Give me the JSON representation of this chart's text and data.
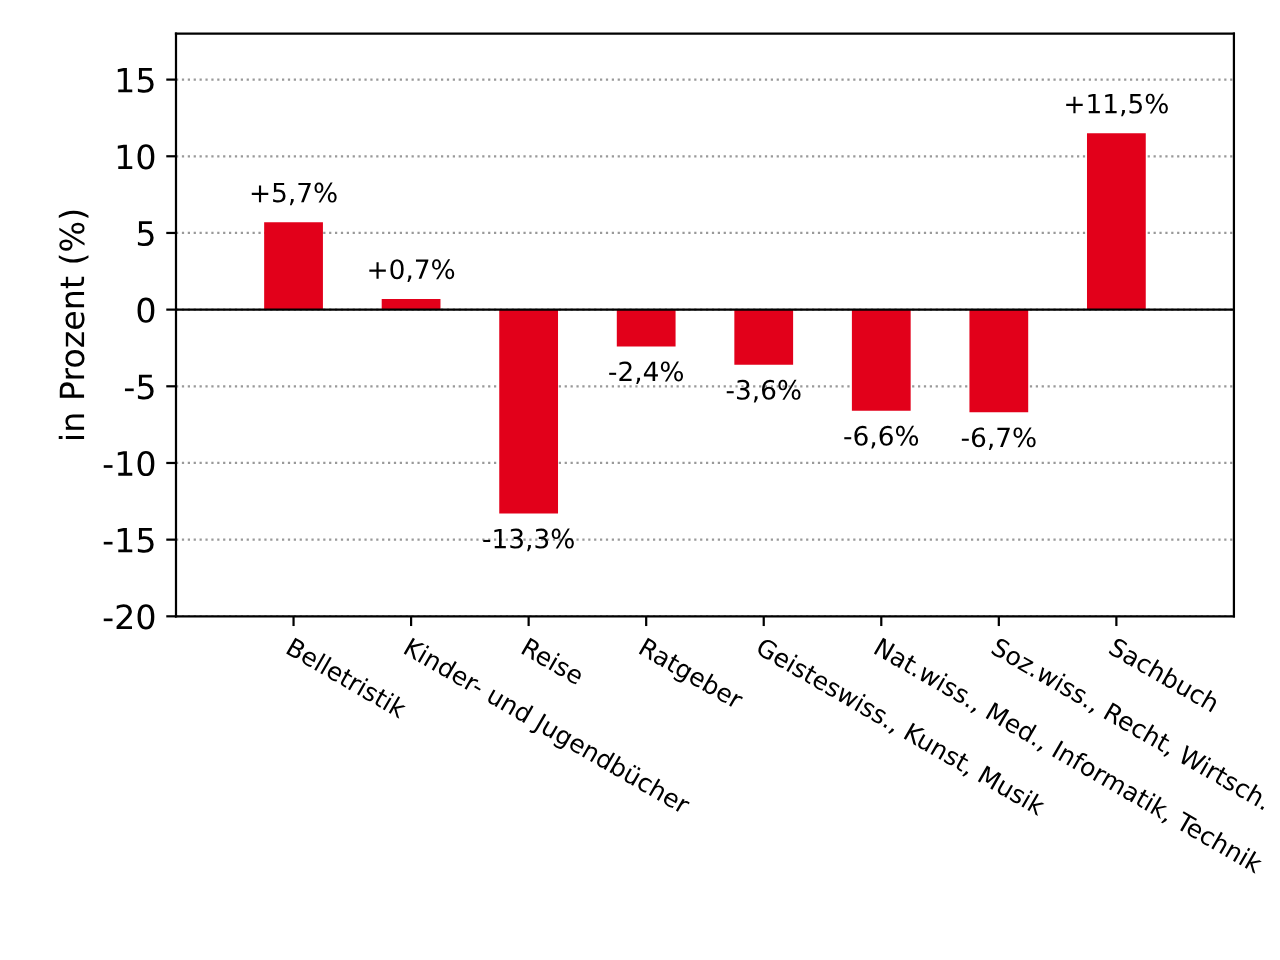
{
  "chart_data": {
    "type": "bar",
    "ylabel": "in Prozent (%)",
    "categories": [
      "Belletristik",
      "Kinder- und Jugendbücher",
      "Reise",
      "Ratgeber",
      "Geisteswiss., Kunst, Musik",
      "Nat.wiss., Med., Informatik, Technik",
      "Soz.wiss., Recht, Wirtsch.",
      "Sachbuch"
    ],
    "values": [
      5.7,
      0.7,
      -13.3,
      -2.4,
      -3.6,
      -6.6,
      -6.7,
      11.5
    ],
    "value_labels": [
      "+5,7%",
      "+0,7%",
      "-13,3%",
      "-2,4%",
      "-3,6%",
      "-6,6%",
      "-6,7%",
      "+11,5%"
    ],
    "color": "#e2001a",
    "ylim": [
      -20,
      18
    ],
    "yticks": [
      -20,
      -15,
      -10,
      -5,
      0,
      5,
      10,
      15
    ],
    "grid": "y",
    "ref_lines": [
      {
        "axis": "y",
        "value": 0,
        "color": "#000000"
      }
    ]
  }
}
